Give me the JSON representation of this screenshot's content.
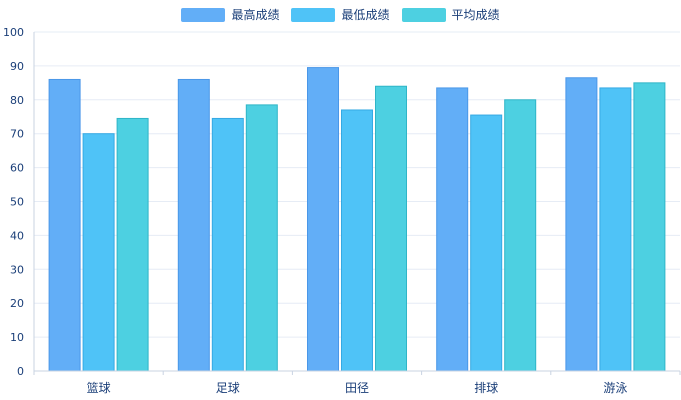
{
  "chart_data": {
    "type": "bar",
    "categories": [
      "篮球",
      "足球",
      "田径",
      "排球",
      "游泳"
    ],
    "series": [
      {
        "name": "最高成绩",
        "values": [
          86,
          86,
          89.5,
          83.5,
          86.5
        ],
        "color": "#62aef7",
        "edge": "#4a97e8"
      },
      {
        "name": "最低成绩",
        "values": [
          70,
          74.5,
          77,
          75.5,
          83.5
        ],
        "color": "#4fc3f7",
        "edge": "#35a9e3"
      },
      {
        "name": "平均成绩",
        "values": [
          74.5,
          78.5,
          84,
          80,
          85
        ],
        "color": "#4dd0e1",
        "edge": "#2fb5c7"
      }
    ],
    "ylim": [
      0,
      100
    ],
    "yticks": [
      0,
      10,
      20,
      30,
      40,
      50,
      60,
      70,
      80,
      90,
      100
    ],
    "legend": "top-center",
    "grid": true
  }
}
